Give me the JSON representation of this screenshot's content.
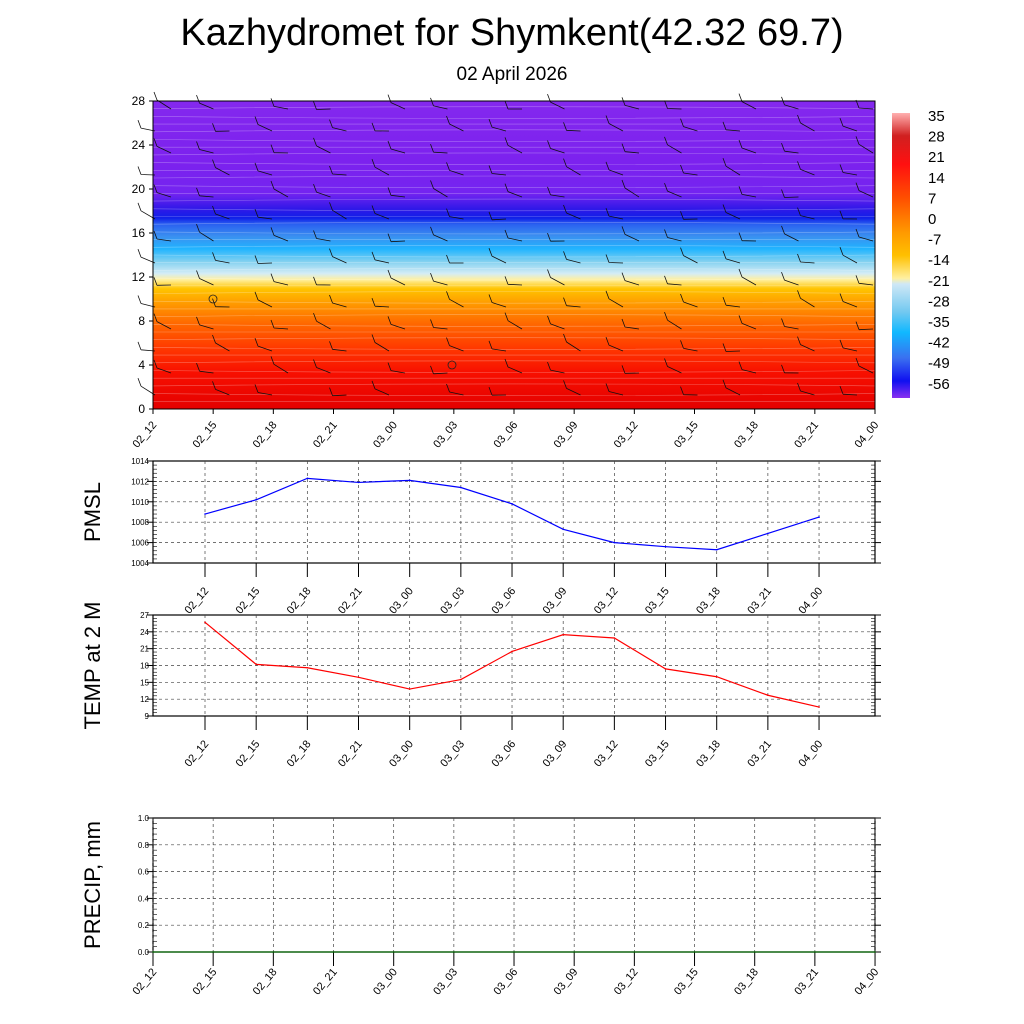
{
  "title": "Kazhydromet for Shymkent(42.32 69.7)",
  "subtitle": "02 April 2026",
  "chart_data": [
    {
      "type": "heatmap",
      "name": "temperature-wind-cross-section",
      "ylabel": "",
      "ylim": [
        0,
        28
      ],
      "yticks": [
        "0",
        "4",
        "8",
        "12",
        "16",
        "20",
        "24",
        "28"
      ],
      "xticks": [
        "02_12",
        "02_15",
        "02_18",
        "02_21",
        "03_00",
        "03_03",
        "03_06",
        "03_09",
        "03_12",
        "03_15",
        "03_18",
        "03_21",
        "04_00"
      ],
      "colorbar_labels": [
        "35",
        "28",
        "21",
        "14",
        "7",
        "0",
        "-7",
        "-14",
        "-21",
        "-28",
        "-35",
        "-42",
        "-49",
        "-56"
      ],
      "colorbar_range": [
        -60,
        37
      ]
    },
    {
      "type": "line",
      "name": "pmsl",
      "ylabel": "PMSL",
      "ylim": [
        1004,
        1014
      ],
      "yticks": [
        "1004",
        "1006",
        "1008",
        "1010",
        "1012",
        "1014"
      ],
      "x": [
        "02_12",
        "02_15",
        "02_18",
        "02_21",
        "03_00",
        "03_03",
        "03_06",
        "03_09",
        "03_12",
        "03_15",
        "03_18",
        "03_21",
        "04_00"
      ],
      "values": [
        1008.8,
        1010.2,
        1012.3,
        1011.9,
        1012.1,
        1011.4,
        1009.8,
        1007.3,
        1006.0,
        1005.6,
        1005.3,
        1006.9,
        1008.5
      ],
      "color": "#0000ff",
      "grid": true
    },
    {
      "type": "line",
      "name": "temp-2m",
      "ylabel": "TEMP at 2 M",
      "ylim": [
        9,
        27
      ],
      "yticks": [
        "9",
        "12",
        "15",
        "18",
        "21",
        "24",
        "27"
      ],
      "x": [
        "02_12",
        "02_15",
        "02_18",
        "02_21",
        "03_00",
        "03_03",
        "03_06",
        "03_09",
        "03_12",
        "03_15",
        "03_18",
        "03_21",
        "04_00"
      ],
      "values": [
        25.7,
        18.2,
        17.6,
        15.9,
        13.8,
        15.5,
        20.5,
        23.5,
        22.9,
        17.4,
        16.0,
        12.7,
        10.6
      ],
      "color": "#ff0000",
      "grid": true
    },
    {
      "type": "line",
      "name": "precip",
      "ylabel": "PRECIP, mm",
      "ylim": [
        0,
        1
      ],
      "yticks": [
        "0.0",
        "0.2",
        "0.4",
        "0.6",
        "0.8",
        "1.0"
      ],
      "x": [
        "02_12",
        "02_15",
        "02_18",
        "02_21",
        "03_00",
        "03_03",
        "03_06",
        "03_09",
        "03_12",
        "03_15",
        "03_18",
        "03_21",
        "04_00"
      ],
      "values": [
        0,
        0,
        0,
        0,
        0,
        0,
        0,
        0,
        0,
        0,
        0,
        0,
        0
      ],
      "color": "#006400",
      "grid": true
    }
  ]
}
